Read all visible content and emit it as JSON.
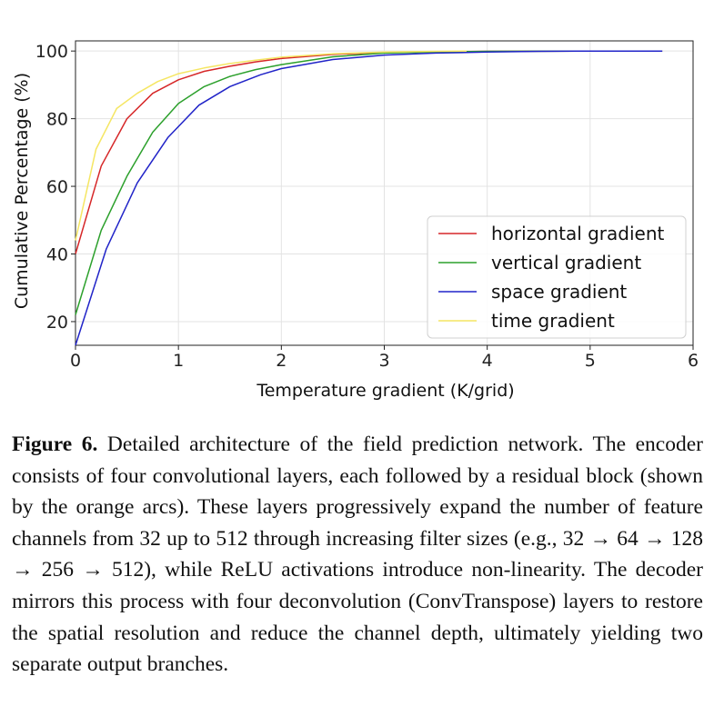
{
  "chart_data": {
    "type": "line",
    "xlabel": "Temperature gradient (K/grid)",
    "ylabel": "Cumulative Percentage (%)",
    "xlim": [
      0,
      6
    ],
    "ylim": [
      13,
      103
    ],
    "xticks": [
      0,
      1,
      2,
      3,
      4,
      5,
      6
    ],
    "yticks": [
      20,
      40,
      60,
      80,
      100
    ],
    "grid": true,
    "legend_position": "lower-right",
    "series": [
      {
        "name": "horizontal gradient",
        "color": "#d62728",
        "x": [
          0,
          0.25,
          0.5,
          0.75,
          1.0,
          1.25,
          1.5,
          1.75,
          2.0,
          2.5,
          3.0,
          3.5,
          4.0,
          5.0,
          5.7
        ],
        "y": [
          40,
          66,
          80,
          87.5,
          91.5,
          94,
          95.5,
          96.8,
          97.8,
          99,
          99.6,
          99.8,
          99.9,
          100,
          100
        ]
      },
      {
        "name": "vertical gradient",
        "color": "#2ca02c",
        "x": [
          0,
          0.25,
          0.5,
          0.75,
          1.0,
          1.25,
          1.5,
          1.75,
          2.0,
          2.5,
          3.0,
          3.5,
          4.0,
          5.0,
          5.7
        ],
        "y": [
          22,
          47,
          63,
          76,
          84.5,
          89.5,
          92.5,
          94.5,
          96,
          98.3,
          99.4,
          99.7,
          99.9,
          100,
          100
        ]
      },
      {
        "name": "space gradient",
        "color": "#2124c8",
        "x": [
          0,
          0.3,
          0.6,
          0.9,
          1.2,
          1.5,
          1.8,
          2.0,
          2.5,
          3.0,
          3.5,
          4.0,
          4.5,
          5.0,
          5.7
        ],
        "y": [
          13,
          41.5,
          61,
          74.5,
          84,
          89.5,
          93,
          94.8,
          97.5,
          98.8,
          99.4,
          99.7,
          99.9,
          100,
          100
        ]
      },
      {
        "name": "time gradient",
        "color": "#f5e663",
        "x": [
          0,
          0.2,
          0.4,
          0.6,
          0.8,
          1.0,
          1.25,
          1.5,
          1.75,
          2.0,
          2.5,
          3.0,
          3.5,
          3.8
        ],
        "y": [
          44,
          71,
          83,
          87.5,
          91,
          93.3,
          95,
          96.3,
          97.3,
          98.2,
          99.2,
          99.7,
          99.9,
          100
        ]
      }
    ]
  },
  "caption": {
    "label": "Figure 6.",
    "text": "Detailed architecture of the field prediction network. The encoder consists of four convolutional layers, each followed by a residual block (shown by the orange arcs). These layers progressively expand the number of feature channels from 32 up to 512 through increasing filter sizes (e.g., 32 → 64 → 128 → 256 → 512), while ReLU activations introduce non-linearity. The decoder mirrors this process with four deconvolution (ConvTranspose) layers to restore the spatial resolution and reduce the channel depth, ultimately yielding two separate output branches."
  }
}
